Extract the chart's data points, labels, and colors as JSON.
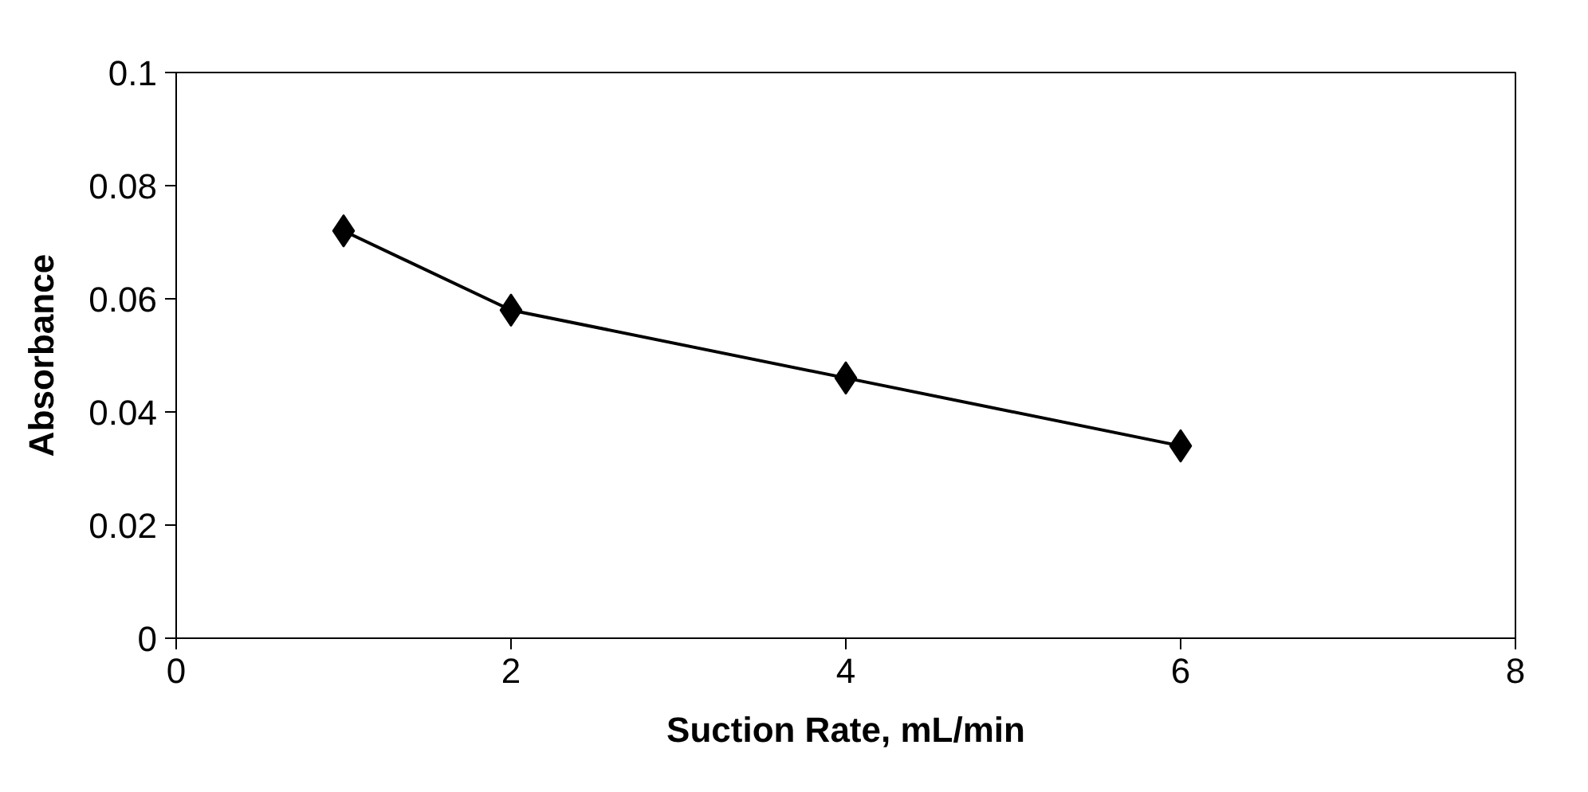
{
  "chart_data": {
    "type": "line",
    "xlabel": "Suction Rate, mL/min",
    "ylabel": "Absorbance",
    "x": [
      1,
      2,
      4,
      6
    ],
    "series": [
      {
        "color": "#000000",
        "values": [
          0.072,
          0.058,
          0.046,
          0.034
        ]
      }
    ],
    "xlim": [
      0,
      8
    ],
    "xticks": [
      0,
      2,
      4,
      6,
      8
    ],
    "ylim": [
      0,
      0.1
    ],
    "yticks": [
      0,
      0.02,
      0.04,
      0.06,
      0.08,
      0.1
    ],
    "marker": "diamond",
    "line_style": "solid"
  }
}
